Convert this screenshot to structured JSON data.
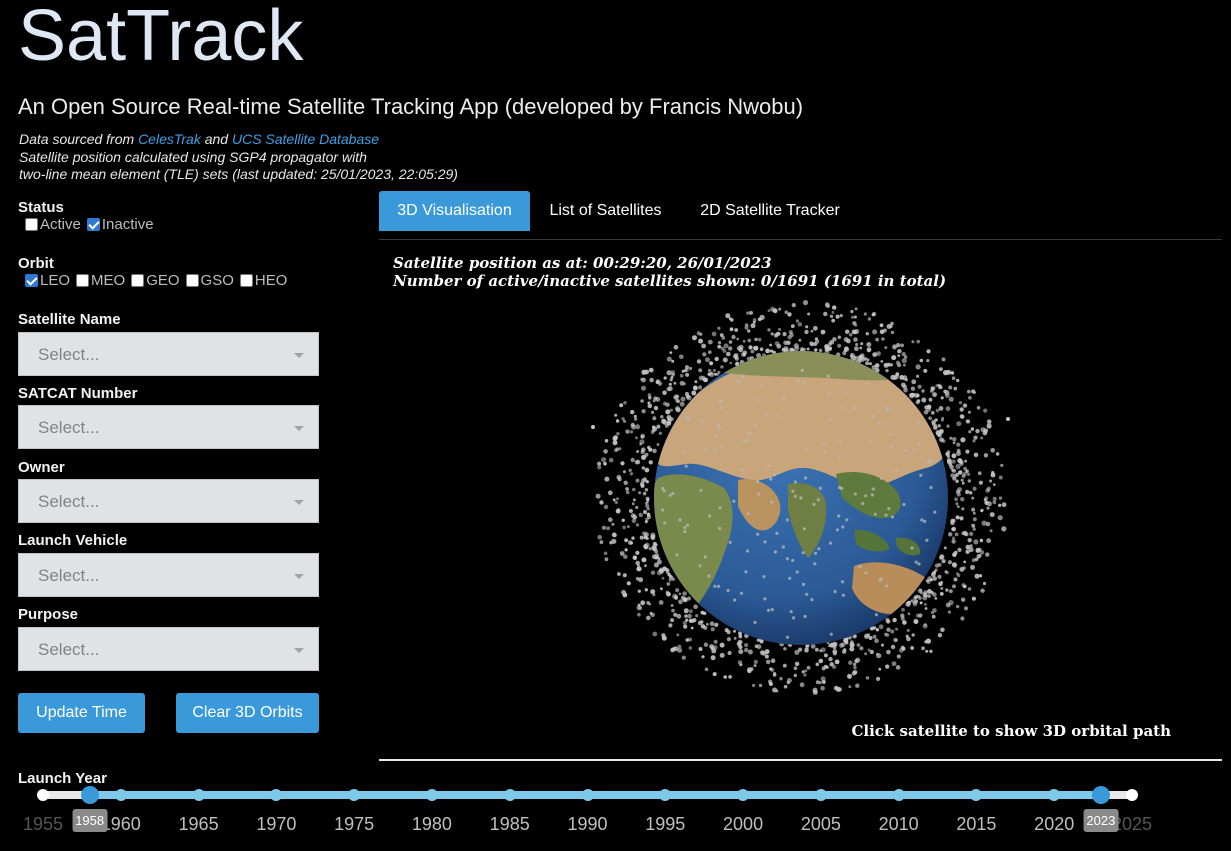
{
  "app": {
    "title": "SatTrack",
    "subtitle": "An Open Source Real-time Satellite Tracking App (developed by Francis Nwobu)"
  },
  "info": {
    "line1_pre": "Data sourced from ",
    "link1": "CelesTrak",
    "line1_mid": " and ",
    "link2": "UCS Satellite Database",
    "line2": "Satellite position calculated using SGP4 propagator with",
    "line3": "two-line mean element (TLE) sets (last updated: 25/01/2023, 22:05:29)"
  },
  "filters": {
    "status_label": "Status",
    "status": [
      {
        "label": "Active",
        "checked": false
      },
      {
        "label": "Inactive",
        "checked": true
      }
    ],
    "orbit_label": "Orbit",
    "orbit": [
      {
        "label": "LEO",
        "checked": true
      },
      {
        "label": "MEO",
        "checked": false
      },
      {
        "label": "GEO",
        "checked": false
      },
      {
        "label": "GSO",
        "checked": false
      },
      {
        "label": "HEO",
        "checked": false
      }
    ],
    "dropdowns": [
      {
        "label": "Satellite Name",
        "placeholder": "Select..."
      },
      {
        "label": "SATCAT Number",
        "placeholder": "Select..."
      },
      {
        "label": "Owner",
        "placeholder": "Select..."
      },
      {
        "label": "Launch Vehicle",
        "placeholder": "Select..."
      },
      {
        "label": "Purpose",
        "placeholder": "Select..."
      }
    ]
  },
  "buttons": {
    "update_time": "Update Time",
    "clear_orbits": "Clear 3D Orbits"
  },
  "tabs": [
    {
      "label": "3D Visualisation",
      "active": true
    },
    {
      "label": "List of Satellites",
      "active": false
    },
    {
      "label": "2D Satellite Tracker",
      "active": false
    }
  ],
  "viz": {
    "position_text": "Satellite position as at: 00:29:20, 26/01/2023",
    "count_text": "Number of active/inactive satellites shown: 0/1691 (1691 in total)",
    "hint": "Click satellite to show 3D orbital path"
  },
  "launch_year": {
    "label": "Launch Year",
    "min": 1955,
    "max": 2025,
    "selected_min": "1958",
    "selected_max": "2023",
    "ticks": [
      "1955",
      "1960",
      "1965",
      "1970",
      "1975",
      "1980",
      "1985",
      "1990",
      "1995",
      "2000",
      "2005",
      "2010",
      "2015",
      "2020",
      "2025"
    ]
  },
  "colors": {
    "accent": "#3a9ad9",
    "link": "#3ea0e6",
    "slider_fill": "#7ec8ea",
    "ocean": "#2b5a96",
    "land": "#caa97e",
    "satellite": "#c8c8c8"
  }
}
